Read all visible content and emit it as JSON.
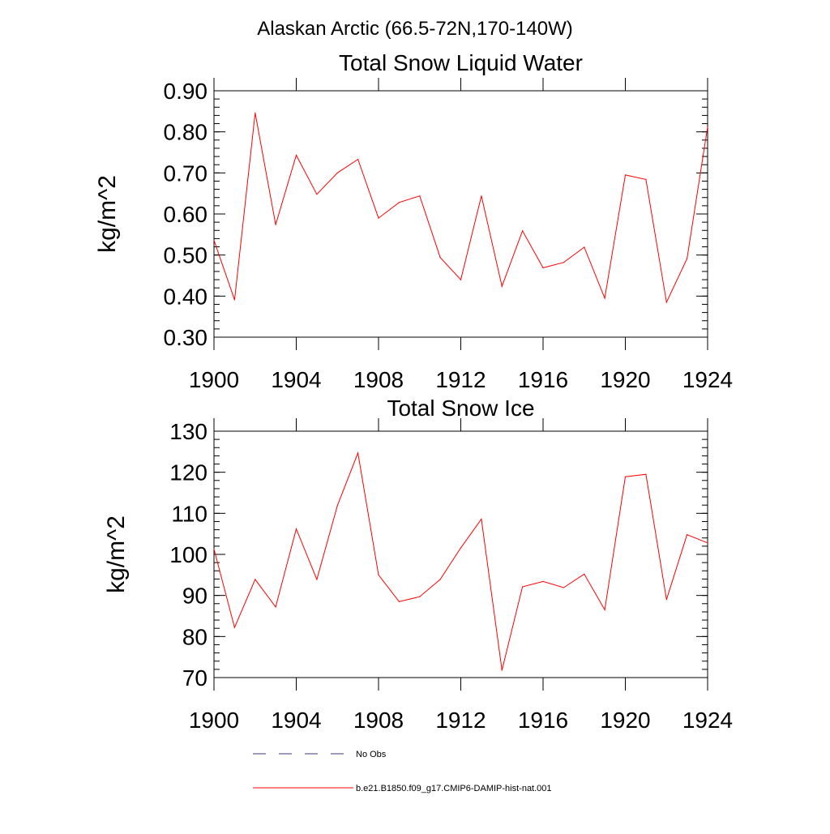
{
  "page_title": "Alaskan Arctic (66.5-72N,170-140W)",
  "colors": {
    "model_line": "#ff0000",
    "obs_line": "#3a3a8c",
    "axis": "#000000"
  },
  "legend": {
    "obs_label": "No Obs",
    "model_label": "b.e21.B1850.f09_g17.CMIP6-DAMIP-hist-nat.001"
  },
  "chart_data": [
    {
      "type": "line",
      "title": "Total Snow Liquid Water",
      "xlabel": "",
      "ylabel": "kg/m^2",
      "xlim": [
        1900,
        1924
      ],
      "ylim": [
        0.3,
        0.9
      ],
      "x_ticks": [
        1900,
        1904,
        1908,
        1912,
        1916,
        1920,
        1924
      ],
      "x_tick_labels": [
        "1900",
        "1904",
        "1908",
        "1912",
        "1916",
        "1920",
        "1924"
      ],
      "y_ticks": [
        0.3,
        0.4,
        0.5,
        0.6,
        0.7,
        0.8,
        0.9
      ],
      "y_tick_labels": [
        "0.30",
        "0.40",
        "0.50",
        "0.60",
        "0.70",
        "0.80",
        "0.90"
      ],
      "y_minor_step": 0.02,
      "x": [
        1900,
        1901,
        1902,
        1903,
        1904,
        1905,
        1906,
        1907,
        1908,
        1909,
        1910,
        1911,
        1912,
        1913,
        1914,
        1915,
        1916,
        1917,
        1918,
        1919,
        1920,
        1921,
        1922,
        1923,
        1924
      ],
      "series": [
        {
          "name": "b.e21.B1850.f09_g17.CMIP6-DAMIP-hist-nat.001",
          "values": [
            0.536,
            0.391,
            0.846,
            0.574,
            0.743,
            0.648,
            0.7,
            0.733,
            0.59,
            0.628,
            0.644,
            0.494,
            0.44,
            0.644,
            0.424,
            0.559,
            0.469,
            0.482,
            0.519,
            0.395,
            0.695,
            0.684,
            0.385,
            0.491,
            0.812
          ]
        }
      ],
      "grid": false
    },
    {
      "type": "line",
      "title": "Total Snow Ice",
      "xlabel": "",
      "ylabel": "kg/m^2",
      "xlim": [
        1900,
        1924
      ],
      "ylim": [
        70,
        130
      ],
      "x_ticks": [
        1900,
        1904,
        1908,
        1912,
        1916,
        1920,
        1924
      ],
      "x_tick_labels": [
        "1900",
        "1904",
        "1908",
        "1912",
        "1916",
        "1920",
        "1924"
      ],
      "y_ticks": [
        70,
        80,
        90,
        100,
        110,
        120,
        130
      ],
      "y_tick_labels": [
        "70",
        "80",
        "90",
        "100",
        "110",
        "120",
        "130"
      ],
      "y_minor_step": 2,
      "x": [
        1900,
        1901,
        1902,
        1903,
        1904,
        1905,
        1906,
        1907,
        1908,
        1909,
        1910,
        1911,
        1912,
        1913,
        1914,
        1915,
        1916,
        1917,
        1918,
        1919,
        1920,
        1921,
        1922,
        1923,
        1924
      ],
      "series": [
        {
          "name": "b.e21.B1850.f09_g17.CMIP6-DAMIP-hist-nat.001",
          "values": [
            101.3,
            82.2,
            93.9,
            87.2,
            106.2,
            93.9,
            111.9,
            124.7,
            95.0,
            88.5,
            89.7,
            93.9,
            101.6,
            108.6,
            71.8,
            92.1,
            93.4,
            91.9,
            95.2,
            86.5,
            118.9,
            119.5,
            89.0,
            104.8,
            102.8
          ]
        }
      ],
      "grid": false
    }
  ]
}
